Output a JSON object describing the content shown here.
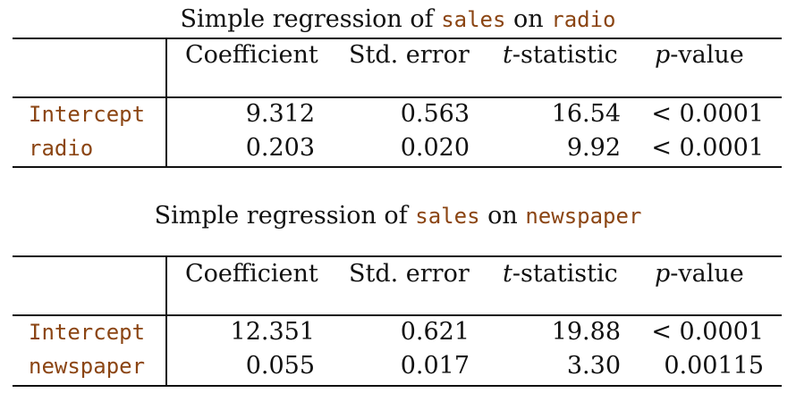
{
  "tables": [
    {
      "caption": {
        "prefix": "Simple regression of ",
        "response": "sales",
        "middle": " on ",
        "predictor": "radio"
      },
      "headers": {
        "coefficient": "Coefficient",
        "std_error": "Std. error",
        "t_italic": "t",
        "t_rest": "-statistic",
        "p_italic": "p",
        "p_rest": "-value"
      },
      "rows": [
        {
          "label": "Intercept",
          "coefficient": "9.312",
          "std_error": "0.563",
          "t_statistic": "16.54",
          "p_value": "< 0.0001"
        },
        {
          "label": "radio",
          "coefficient": "0.203",
          "std_error": "0.020",
          "t_statistic": "9.92",
          "p_value": "< 0.0001"
        }
      ]
    },
    {
      "caption": {
        "prefix": "Simple regression of ",
        "response": "sales",
        "middle": " on ",
        "predictor": "newspaper"
      },
      "headers": {
        "coefficient": "Coefficient",
        "std_error": "Std. error",
        "t_italic": "t",
        "t_rest": "-statistic",
        "p_italic": "p",
        "p_rest": "-value"
      },
      "rows": [
        {
          "label": "Intercept",
          "coefficient": "12.351",
          "std_error": "0.621",
          "t_statistic": "19.88",
          "p_value": "< 0.0001"
        },
        {
          "label": "newspaper",
          "coefficient": "0.055",
          "std_error": "0.017",
          "t_statistic": "3.30",
          "p_value": "0.00115"
        }
      ]
    }
  ],
  "colors": {
    "code_text": "#8b4513",
    "text": "#111111",
    "rules": "#111111"
  }
}
